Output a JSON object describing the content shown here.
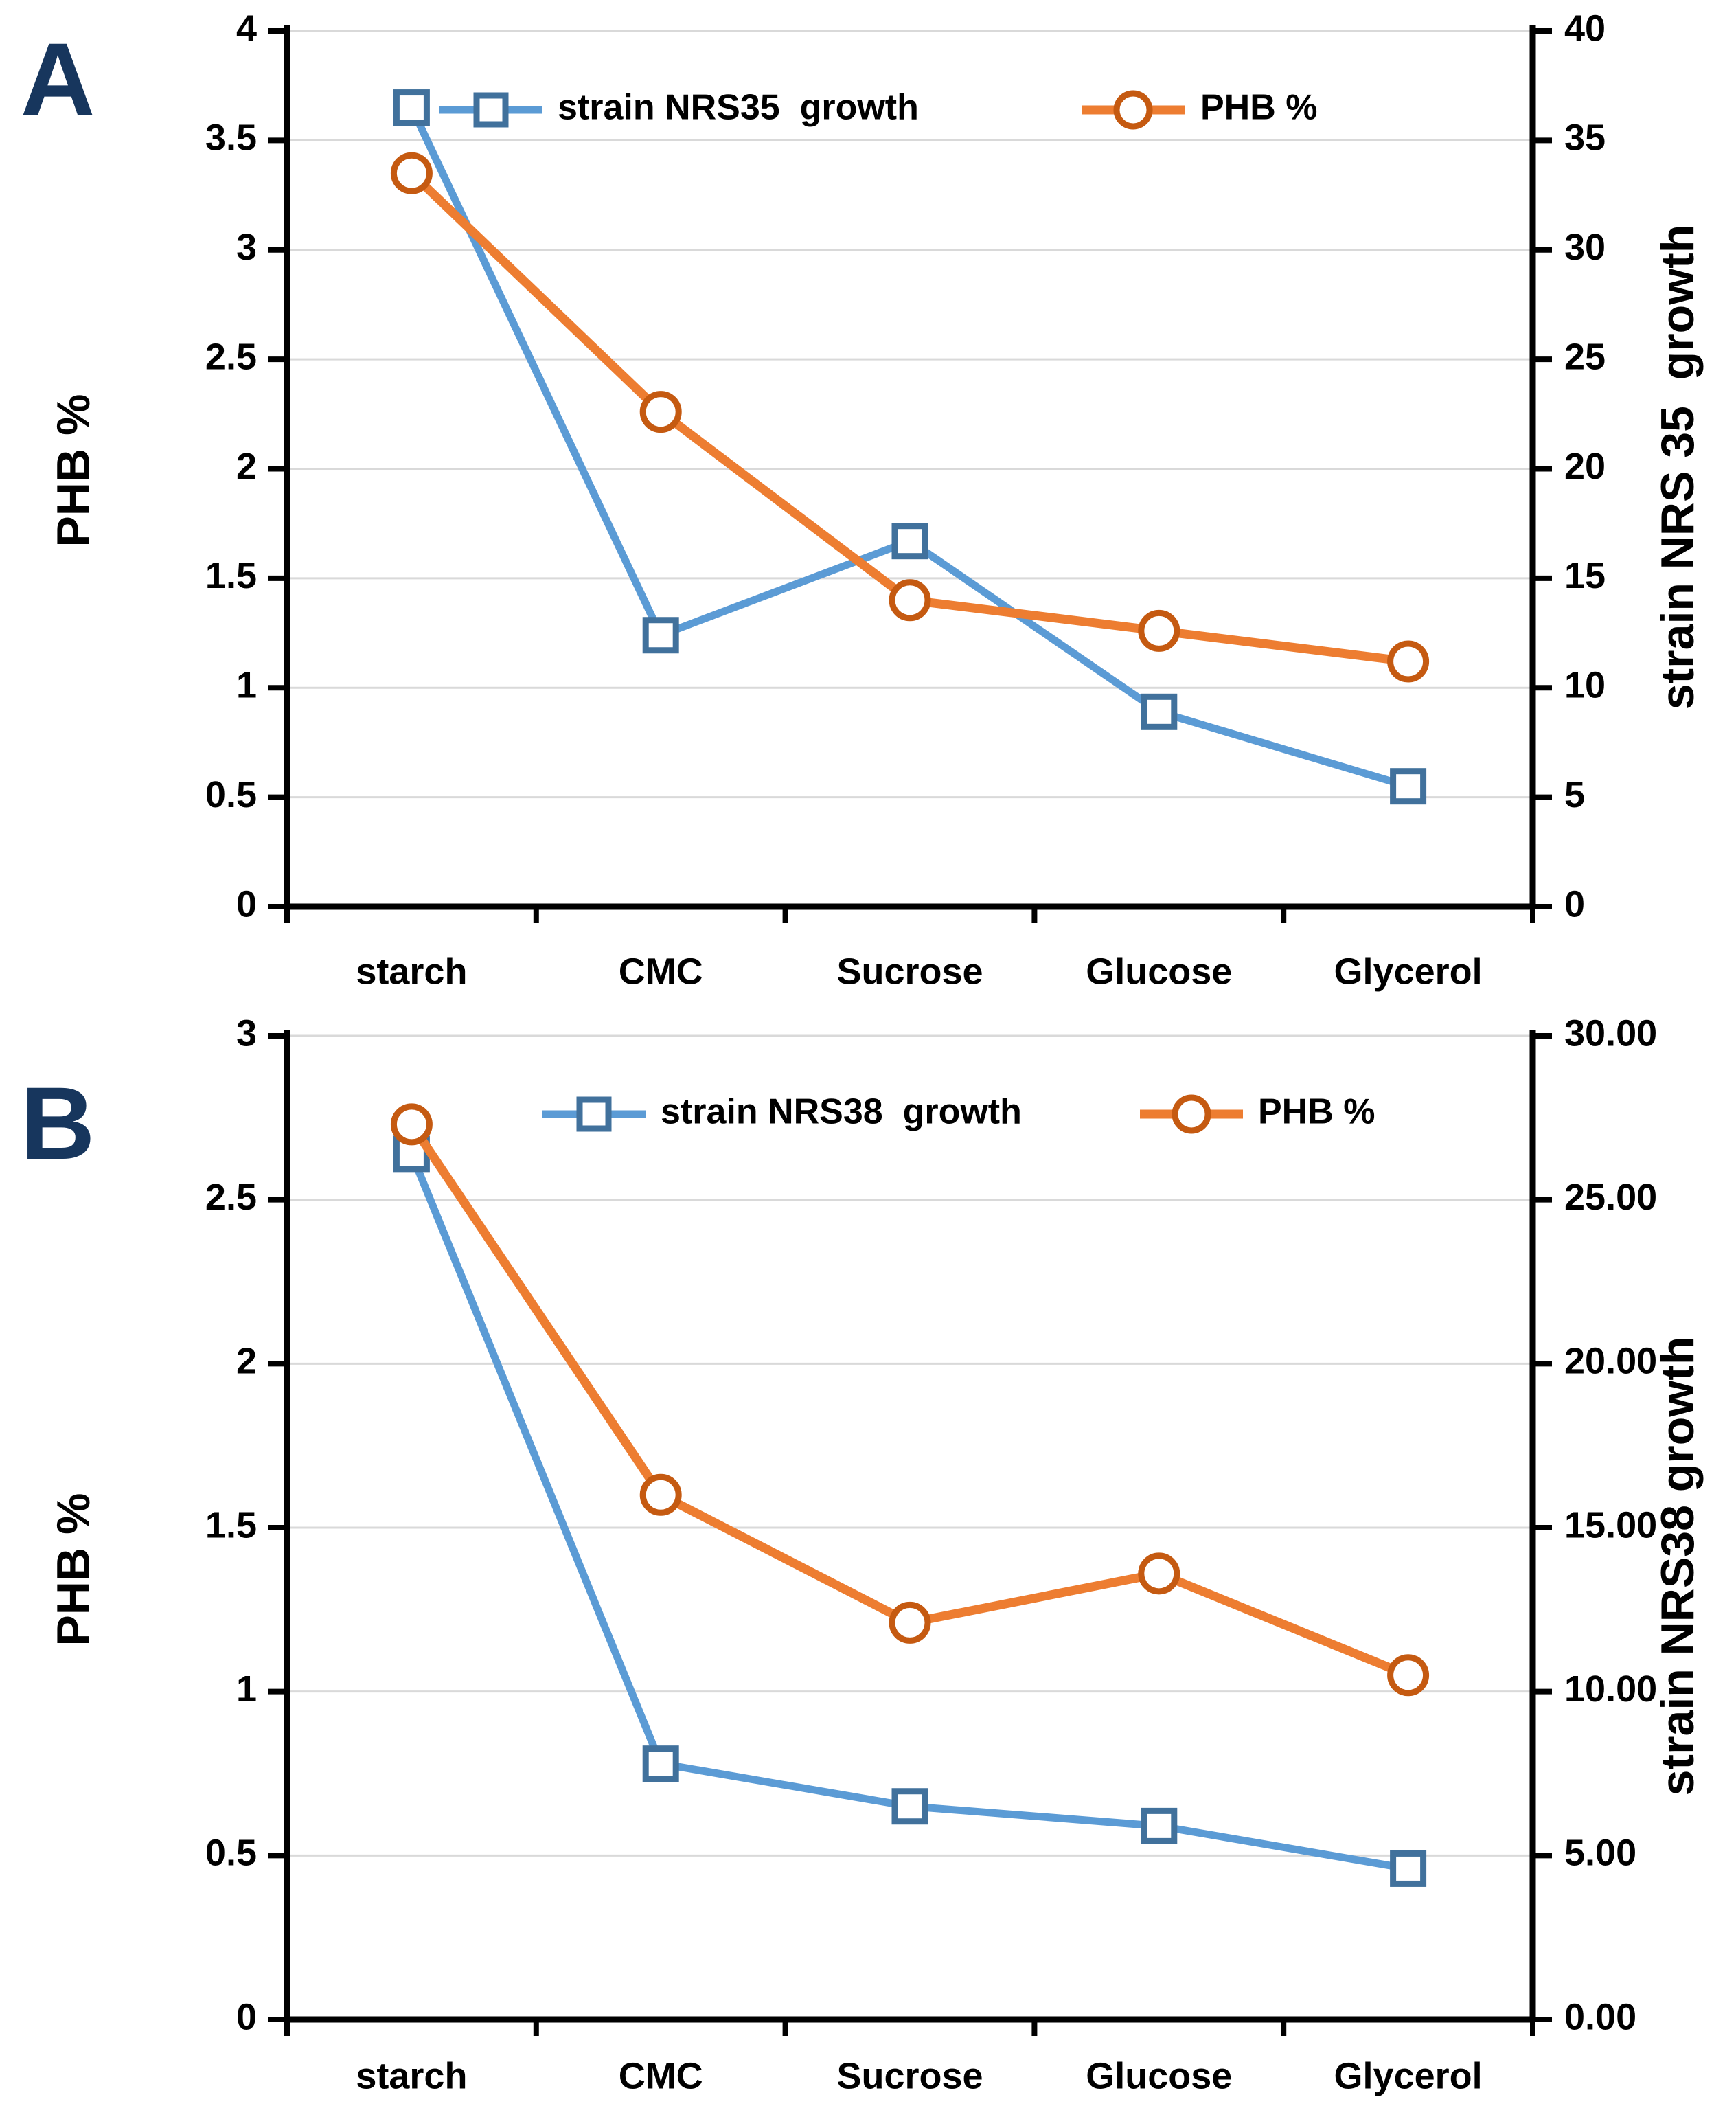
{
  "figure": {
    "panel_a_label": "A",
    "panel_b_label": "B"
  },
  "colors": {
    "blue_line": "#5B9BD5",
    "blue_marker_edge": "#41719C",
    "orange_line": "#ED7D31",
    "orange_marker_edge": "#C55A11",
    "gridline": "#D9D9D9",
    "axis": "#000000",
    "text": "#000000",
    "panel_label": "#17365D",
    "marker_fill": "#FFFFFF"
  },
  "chart_data": [
    {
      "id": "A",
      "type": "line",
      "categories": [
        "starch",
        "CMC",
        "Sucrose",
        "Glucose",
        "Glycerol"
      ],
      "series": [
        {
          "name": "strain NRS35  growth",
          "axis": "right",
          "marker": "square",
          "values": [
            36.5,
            12.4,
            16.7,
            8.9,
            5.5
          ]
        },
        {
          "name": "PHB %",
          "axis": "left",
          "marker": "circle",
          "values": [
            3.35,
            2.26,
            1.4,
            1.26,
            1.12
          ]
        }
      ],
      "left_axis": {
        "title": "PHB %",
        "min": 0,
        "max": 4,
        "step": 0.5,
        "tick_labels": [
          "0",
          "0.5",
          "1",
          "1.5",
          "2",
          "2.5",
          "3",
          "3.5",
          "4"
        ]
      },
      "right_axis": {
        "title": "strain NRS 35  growth",
        "min": 0,
        "max": 40,
        "step": 5,
        "tick_labels": [
          "0",
          "5",
          "10",
          "15",
          "20",
          "25",
          "30",
          "35",
          "40"
        ]
      },
      "legend_position": "top-center",
      "grid": true
    },
    {
      "id": "B",
      "type": "line",
      "categories": [
        "starch",
        "CMC",
        "Sucrose",
        "Glucose",
        "Glycerol"
      ],
      "series": [
        {
          "name": "strain NRS38  growth",
          "axis": "right",
          "marker": "square",
          "values": [
            26.4,
            7.8,
            6.5,
            5.9,
            4.6
          ]
        },
        {
          "name": "PHB %",
          "axis": "left",
          "marker": "circle",
          "values": [
            2.73,
            1.6,
            1.21,
            1.36,
            1.05
          ]
        }
      ],
      "left_axis": {
        "title": "PHB %",
        "min": 0,
        "max": 3,
        "step": 0.5,
        "tick_labels": [
          "0",
          "0.5",
          "1",
          "1.5",
          "2",
          "2.5",
          "3"
        ]
      },
      "right_axis": {
        "title": "strain NRS38 growth",
        "min": 0,
        "max": 30,
        "step": 5,
        "tick_labels": [
          "0.00",
          "5.00",
          "10.00",
          "15.00",
          "20.00",
          "25.00",
          "30.00"
        ]
      },
      "legend_position": "top-center",
      "grid": true
    }
  ]
}
